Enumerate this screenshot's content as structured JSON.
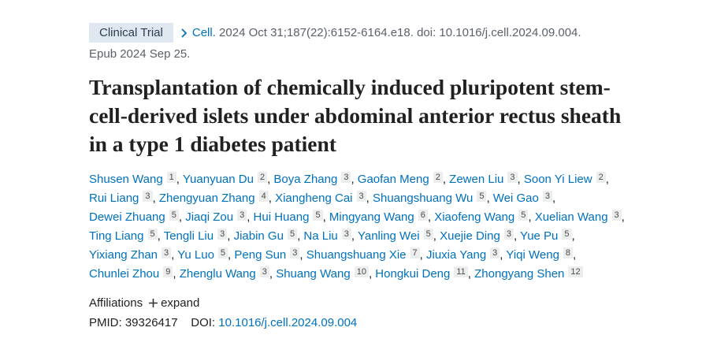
{
  "header": {
    "tag": "Clinical Trial",
    "citation": {
      "journal": "Cell.",
      "details": "2024 Oct 31;187(22):6152-6164.e18. doi: 10.1016/j.cell.2024.09.004.",
      "epub": "Epub 2024 Sep 25."
    }
  },
  "title": "Transplantation of chemically induced pluripotent stem-cell-derived islets under abdominal anterior rectus sheath in a type 1 diabetes patient",
  "author_separator": ",",
  "authors": [
    {
      "name": "Shusen Wang",
      "affiliation": 1
    },
    {
      "name": "Yuanyuan Du",
      "affiliation": 2
    },
    {
      "name": "Boya Zhang",
      "affiliation": 3
    },
    {
      "name": "Gaofan Meng",
      "affiliation": 2
    },
    {
      "name": "Zewen Liu",
      "affiliation": 3
    },
    {
      "name": "Soon Yi Liew",
      "affiliation": 2
    },
    {
      "name": "Rui Liang",
      "affiliation": 3
    },
    {
      "name": "Zhengyuan Zhang",
      "affiliation": 4
    },
    {
      "name": "Xiangheng Cai",
      "affiliation": 3
    },
    {
      "name": "Shuangshuang Wu",
      "affiliation": 5
    },
    {
      "name": "Wei Gao",
      "affiliation": 3
    },
    {
      "name": "Dewei Zhuang",
      "affiliation": 5
    },
    {
      "name": "Jiaqi Zou",
      "affiliation": 3
    },
    {
      "name": "Hui Huang",
      "affiliation": 5
    },
    {
      "name": "Mingyang Wang",
      "affiliation": 6
    },
    {
      "name": "Xiaofeng Wang",
      "affiliation": 5
    },
    {
      "name": "Xuelian Wang",
      "affiliation": 3
    },
    {
      "name": "Ting Liang",
      "affiliation": 5
    },
    {
      "name": "Tengli Liu",
      "affiliation": 3
    },
    {
      "name": "Jiabin Gu",
      "affiliation": 5
    },
    {
      "name": "Na Liu",
      "affiliation": 3
    },
    {
      "name": "Yanling Wei",
      "affiliation": 5
    },
    {
      "name": "Xuejie Ding",
      "affiliation": 3
    },
    {
      "name": "Yue Pu",
      "affiliation": 5
    },
    {
      "name": "Yixiang Zhan",
      "affiliation": 3
    },
    {
      "name": "Yu Luo",
      "affiliation": 5
    },
    {
      "name": "Peng Sun",
      "affiliation": 3
    },
    {
      "name": "Shuangshuang Xie",
      "affiliation": 7
    },
    {
      "name": "Jiuxia Yang",
      "affiliation": 3
    },
    {
      "name": "Yiqi Weng",
      "affiliation": 8
    },
    {
      "name": "Chunlei Zhou",
      "affiliation": 9
    },
    {
      "name": "Zhenglu Wang",
      "affiliation": 3
    },
    {
      "name": "Shuang Wang",
      "affiliation": 10
    },
    {
      "name": "Hongkui Deng",
      "affiliation": 11
    },
    {
      "name": "Zhongyang Shen",
      "affiliation": 12
    }
  ],
  "affiliations": {
    "label": "Affiliations",
    "toggle": "expand"
  },
  "identifiers": {
    "pmid_label": "PMID:",
    "pmid": "39326417",
    "doi_label": "DOI:",
    "doi": "10.1016/j.cell.2024.09.004"
  }
}
